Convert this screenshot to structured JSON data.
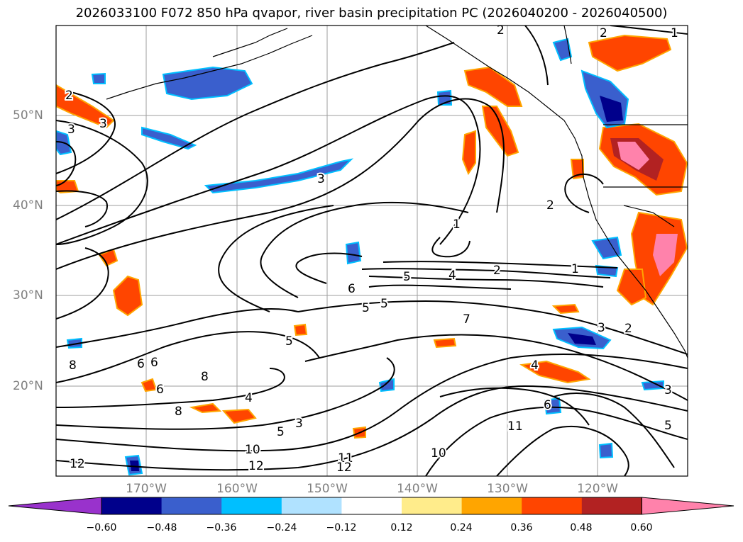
{
  "title": "2026033100 F072 850 hPa qvapor, river basin precipitation PC (2026040200 - 2026040500)",
  "axes": {
    "lon_labels": [
      "170°W",
      "160°W",
      "150°W",
      "140°W",
      "130°W",
      "120°W"
    ],
    "lat_labels": [
      "50°N",
      "40°N",
      "30°N",
      "20°N"
    ]
  },
  "colorbar": {
    "ticks": [
      "−0.60",
      "−0.48",
      "−0.36",
      "−0.24",
      "−0.12",
      "0.12",
      "0.24",
      "0.36",
      "0.48",
      "0.60"
    ],
    "colors": [
      "#9932cc",
      "#00008b",
      "#3a5fcd",
      "#00bfff",
      "#b0e2ff",
      "#ffffff",
      "#ffec8b",
      "#ffa500",
      "#ff4500",
      "#b22222",
      "#ff82ab"
    ]
  },
  "contour_labels": {
    "c1": "2",
    "c2": "1",
    "c3": "2",
    "c4": "3",
    "c5": "3",
    "c6": "2",
    "c7": "3",
    "c8": "1",
    "c9": "2",
    "c10": "1",
    "c11": "2",
    "c12": "5",
    "c13": "4",
    "c14": "6",
    "c15": "5",
    "c16": "5",
    "c17": "7",
    "c18": "3",
    "c19": "2",
    "c20": "5",
    "c21": "4",
    "c22": "8",
    "c23": "6",
    "c24": "6",
    "c25": "8",
    "c26": "6",
    "c27": "4",
    "c28": "5",
    "c29": "3",
    "c30": "10",
    "c31": "12",
    "c32": "11",
    "c33": "12",
    "c34": "11",
    "c35": "10",
    "c36": "3",
    "c37": "5",
    "c38": "6",
    "c39": "12",
    "c40": "8"
  }
}
